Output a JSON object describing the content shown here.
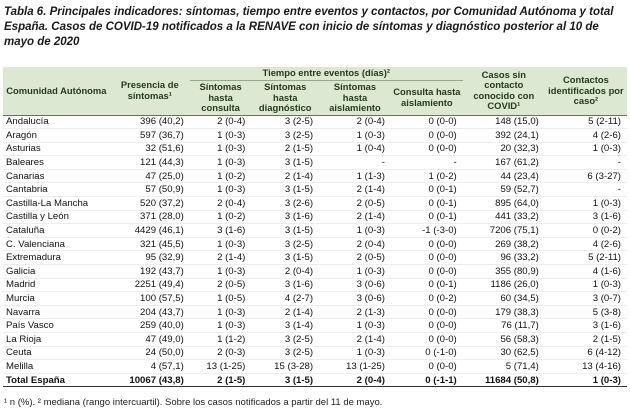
{
  "title": "Tabla 6. Principales indicadores: síntomas, tiempo entre eventos y contactos, por Comunidad Autónoma y total España. Casos de COVID-19 notificados a la RENAVE  con inicio de síntomas y diagnóstico posterior al 10 de mayo de 2020",
  "table": {
    "group_header": "Tiempo entre eventos (días)²",
    "columns": [
      "Comunidad Autónoma",
      "Presencia de síntomas¹",
      "Síntomas hasta consulta",
      "Síntomas hasta diagnóstico",
      "Síntomas hasta aislamiento",
      "Consulta hasta aislamiento",
      "Casos sin contacto conocido con COVID¹",
      "Contactos identificados por caso²"
    ],
    "rows": [
      [
        "Andalucía",
        "396 (40,2)",
        "2 (0-4)",
        "3 (2-5)",
        "2 (0-4)",
        "0 (0-0)",
        "148 (15,0)",
        "5 (2-11)"
      ],
      [
        "Aragón",
        "597 (36,7)",
        "1 (0-3)",
        "3 (2-5)",
        "1 (0-3)",
        "0 (0-0)",
        "392 (24,1)",
        "4 (2-6)"
      ],
      [
        "Asturias",
        "32 (51,6)",
        "1 (0-3)",
        "2 (1-5)",
        "1 (0-4)",
        "0 (0-0)",
        "20 (32,3)",
        "1 (0-3)"
      ],
      [
        "Baleares",
        "121 (44,3)",
        "1 (0-3)",
        "3 (1-5)",
        "-",
        "-",
        "167 (61,2)",
        "-"
      ],
      [
        "Canarias",
        "47 (25,0)",
        "1 (0-2)",
        "2 (1-4)",
        "1 (1-3)",
        "1 (0-2)",
        "44 (23,4)",
        "6 (3-27)"
      ],
      [
        "Cantabria",
        "57 (50,9)",
        "1 (0-3)",
        "3 (1-5)",
        "2 (1-4)",
        "0 (0-1)",
        "59 (52,7)",
        "-"
      ],
      [
        "Castilla-La Mancha",
        "520 (37,2)",
        "2 (0-4)",
        "3 (2-6)",
        "2 (0-5)",
        "0 (0-1)",
        "895 (64,0)",
        "1 (0-3)"
      ],
      [
        "Castilla y León",
        "371 (28,0)",
        "1 (0-2)",
        "3 (1-6)",
        "2 (1-4)",
        "0 (0-1)",
        "441 (33,2)",
        "3 (1-6)"
      ],
      [
        "Cataluña",
        "4429 (46,1)",
        "3 (1-6)",
        "3 (1-5)",
        "1 (0-3)",
        "-1 (-3-0)",
        "7206 (75,1)",
        "0 (0-2)"
      ],
      [
        "C. Valenciana",
        "321 (45,5)",
        "1 (0-3)",
        "3 (2-5)",
        "2 (0-4)",
        "0 (0-0)",
        "269 (38,2)",
        "4 (2-6)"
      ],
      [
        "Extremadura",
        "95 (32,9)",
        "2 (1-4)",
        "3 (1-5)",
        "2 (0-5)",
        "0 (0-0)",
        "96 (33,2)",
        "5 (2-11)"
      ],
      [
        "Galicia",
        "192 (43,7)",
        "1 (0-3)",
        "2 (0-4)",
        "1 (0-3)",
        "0 (0-0)",
        "355 (80,9)",
        "4 (1-6)"
      ],
      [
        "Madrid",
        "2251 (49,4)",
        "2 (0-5)",
        "3 (1-6)",
        "3 (0-6)",
        "0 (0-1)",
        "1186 (26,0)",
        "1 (0-3)"
      ],
      [
        "Murcia",
        "100 (57,5)",
        "1 (0-5)",
        "4 (2-7)",
        "3 (0-6)",
        "0 (0-2)",
        "60 (34,5)",
        "3 (0-7)"
      ],
      [
        "Navarra",
        "204 (43,7)",
        "1 (0-3)",
        "2 (1-4)",
        "2 (1-3)",
        "0 (0-0)",
        "179 (38,3)",
        "5 (3-8)"
      ],
      [
        "País Vasco",
        "259 (40,0)",
        "1 (0-3)",
        "3 (1-4)",
        "1 (0-3)",
        "0 (0-0)",
        "76 (11,7)",
        "3 (1-6)"
      ],
      [
        "La Rioja",
        "47 (49,0)",
        "1 (1-2)",
        "3 (2-5)",
        "2 (1-4)",
        "0 (0-0)",
        "56 (58,3)",
        "2 (1-5)"
      ],
      [
        "Ceuta",
        "24 (50,0)",
        "2 (0-3)",
        "3 (2-5)",
        "1 (0-3)",
        "0 (-1-0)",
        "30 (62,5)",
        "6 (4-12)"
      ],
      [
        "Melilla",
        "4 (57,1)",
        "13 (1-25)",
        "15 (3-28)",
        "13 (1-25)",
        "0 (0-0)",
        "5 (71,4)",
        "13 (4-16)"
      ],
      [
        "Total España",
        "10067 (43,8)",
        "2 (1-5)",
        "3 (1-5)",
        "2 (0-4)",
        "0 (-1-1)",
        "11684 (50,8)",
        "1 (0-3)"
      ]
    ]
  },
  "footnote": "¹ n (%). ² mediana (rango intercuartil). Sobre los casos notificados a partir del 11 de mayo."
}
